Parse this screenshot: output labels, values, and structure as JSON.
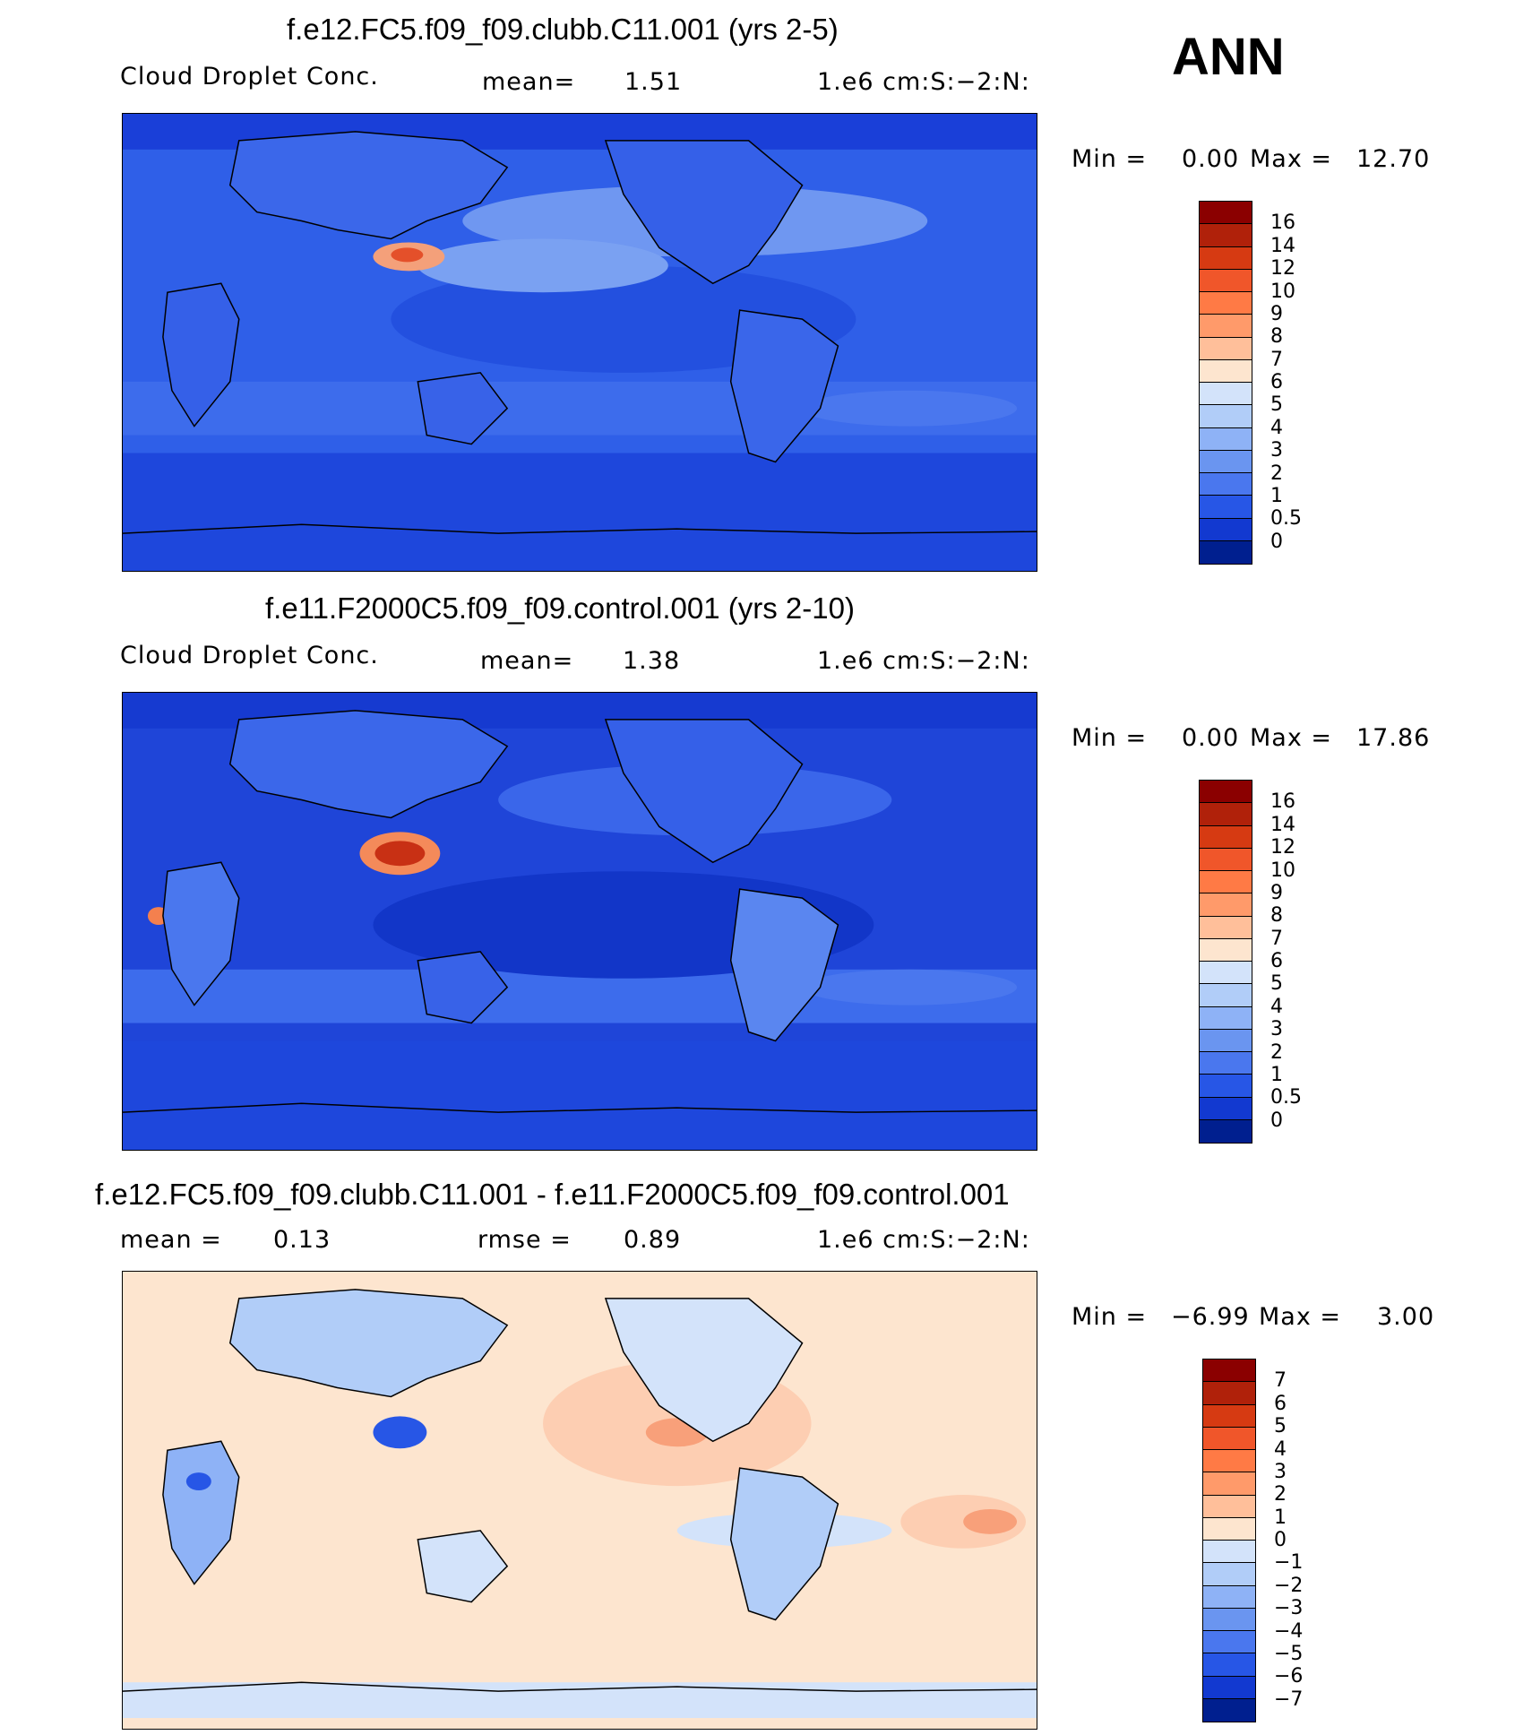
{
  "header": {
    "season": "ANN"
  },
  "panels": [
    {
      "title": "f.e12.FC5.f09_f09.clubb.C11.001 (yrs 2-5)",
      "subtitle_left": "Cloud Droplet Conc.",
      "stat1_label": "mean=",
      "stat1_value": "1.51",
      "stat2_label": "",
      "stat2_value": "",
      "units": "1.e6 cm:S:−2:N:",
      "min_label": "Min =",
      "min_value": "0.00",
      "max_label": "Max =",
      "max_value": "12.70",
      "colorbar": {
        "labels": [
          "16",
          "14",
          "12",
          "10",
          "9",
          "8",
          "7",
          "6",
          "5",
          "4",
          "3",
          "2",
          "1",
          "0.5",
          "0"
        ],
        "colors": [
          "#8b0000",
          "#b0210a",
          "#d63a12",
          "#f0562a",
          "#ff7a45",
          "#ff9a6a",
          "#ffbf9a",
          "#fde5cf",
          "#d3e3fa",
          "#b1cdf8",
          "#8eb2f6",
          "#6a95f0",
          "#4a77ee",
          "#2756e6",
          "#1239d0",
          "#001f8f"
        ]
      }
    },
    {
      "title": "f.e11.F2000C5.f09_f09.control.001 (yrs 2-10)",
      "subtitle_left": "Cloud Droplet Conc.",
      "stat1_label": "mean=",
      "stat1_value": "1.38",
      "stat2_label": "",
      "stat2_value": "",
      "units": "1.e6 cm:S:−2:N:",
      "min_label": "Min =",
      "min_value": "0.00",
      "max_label": "Max =",
      "max_value": "17.86",
      "colorbar": {
        "labels": [
          "16",
          "14",
          "12",
          "10",
          "9",
          "8",
          "7",
          "6",
          "5",
          "4",
          "3",
          "2",
          "1",
          "0.5",
          "0"
        ],
        "colors": [
          "#8b0000",
          "#b0210a",
          "#d63a12",
          "#f0562a",
          "#ff7a45",
          "#ff9a6a",
          "#ffbf9a",
          "#fde5cf",
          "#d3e3fa",
          "#b1cdf8",
          "#8eb2f6",
          "#6a95f0",
          "#4a77ee",
          "#2756e6",
          "#1239d0",
          "#001f8f"
        ]
      }
    },
    {
      "title": "f.e12.FC5.f09_f09.clubb.C11.001 - f.e11.F2000C5.f09_f09.control.001",
      "subtitle_left": "mean =",
      "subtitle_left_value": "0.13",
      "stat1_label": "rmse =",
      "stat1_value": "0.89",
      "units": "1.e6 cm:S:−2:N:",
      "min_label": "Min =",
      "min_value": "−6.99",
      "max_label": "Max =",
      "max_value": "3.00",
      "colorbar": {
        "labels": [
          "7",
          "6",
          "5",
          "4",
          "3",
          "2",
          "1",
          "0",
          "−1",
          "−2",
          "−3",
          "−4",
          "−5",
          "−6",
          "−7"
        ],
        "colors": [
          "#8b0000",
          "#b0210a",
          "#d63a12",
          "#f0562a",
          "#ff7a45",
          "#ff9a6a",
          "#ffbf9a",
          "#fde5cf",
          "#d3e3fa",
          "#b1cdf8",
          "#8eb2f6",
          "#6a95f0",
          "#4a77ee",
          "#2756e6",
          "#1239d0",
          "#001f8f"
        ]
      }
    }
  ]
}
